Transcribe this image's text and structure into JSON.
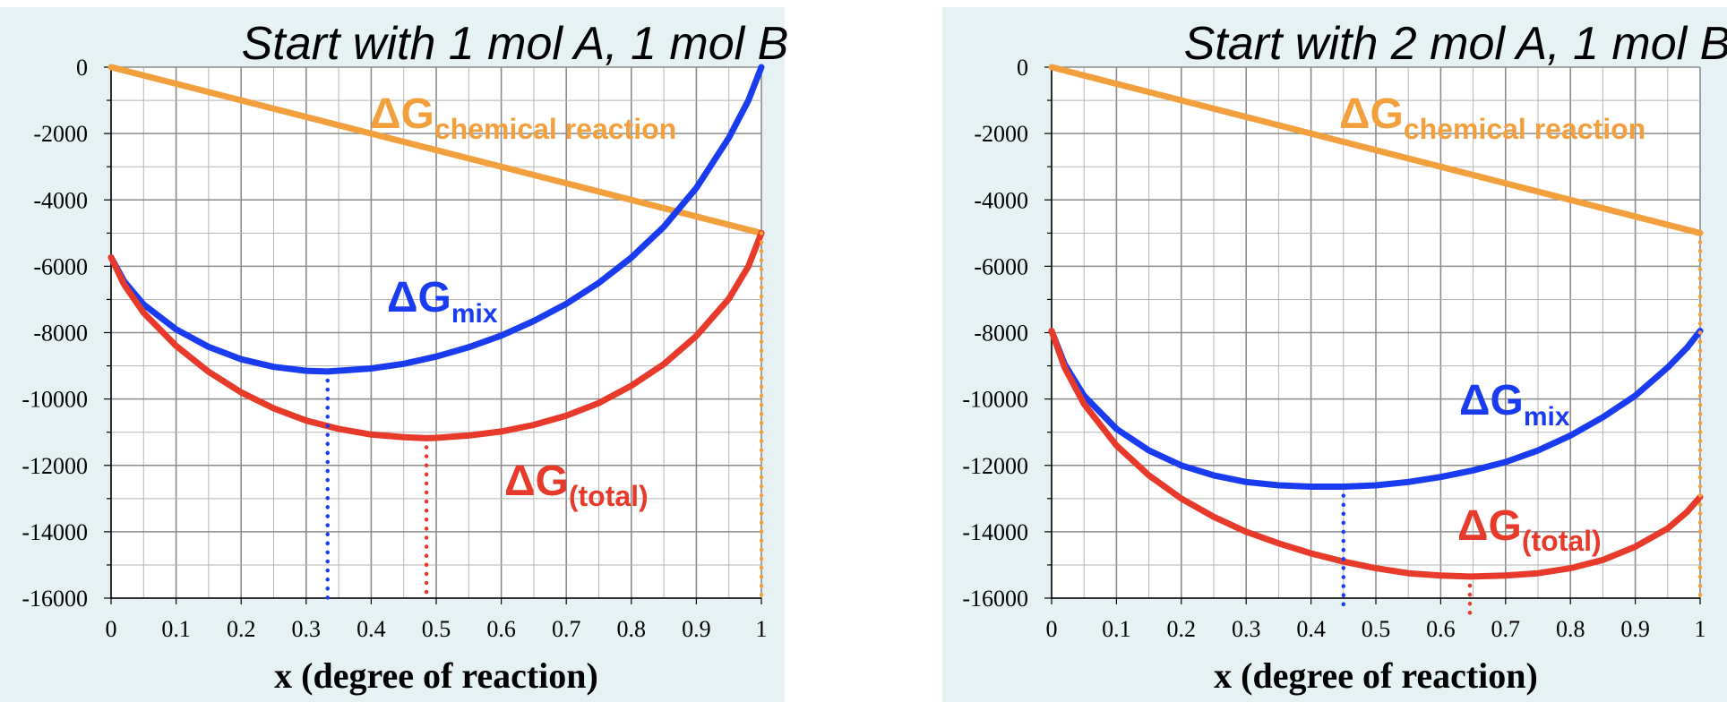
{
  "chart_data": [
    {
      "type": "line",
      "title": "Start with 1 mol A, 1 mol B",
      "xlabel": "x (degree of reaction)",
      "ylabel": "",
      "xlim": [
        0,
        1
      ],
      "ylim": [
        -16000,
        0
      ],
      "x_ticks": [
        "0",
        "0.1",
        "0.2",
        "0.3",
        "0.4",
        "0.5",
        "0.6",
        "0.7",
        "0.8",
        "0.9",
        "1"
      ],
      "y_ticks": [
        "0",
        "-2000",
        "-4000",
        "-6000",
        "-8000",
        "-10000",
        "-12000",
        "-14000",
        "-16000"
      ],
      "grid": true,
      "series": [
        {
          "name": "chemical reaction",
          "label_main": "ΔG",
          "label_sub": "chemical reaction",
          "color": "#f2a03d",
          "x": [
            0,
            1
          ],
          "values": [
            0,
            -5000
          ]
        },
        {
          "name": "mix",
          "label_main": "ΔG",
          "label_sub": "mix",
          "color": "#1a3cf0",
          "x": [
            0,
            0.02,
            0.05,
            0.1,
            0.15,
            0.2,
            0.25,
            0.3,
            0.333,
            0.4,
            0.45,
            0.5,
            0.55,
            0.6,
            0.65,
            0.7,
            0.75,
            0.8,
            0.85,
            0.9,
            0.95,
            0.98,
            1
          ],
          "values": [
            -5730,
            -6450,
            -7150,
            -7900,
            -8430,
            -8800,
            -9030,
            -9150,
            -9170,
            -9080,
            -8940,
            -8720,
            -8440,
            -8090,
            -7650,
            -7130,
            -6500,
            -5740,
            -4810,
            -3640,
            -2130,
            -1000,
            0
          ]
        },
        {
          "name": "total",
          "label_main": "ΔG",
          "label_sub": "(total)",
          "color": "#e83a2a",
          "x": [
            0,
            0.02,
            0.05,
            0.1,
            0.15,
            0.2,
            0.25,
            0.3,
            0.35,
            0.4,
            0.45,
            0.485,
            0.5,
            0.55,
            0.6,
            0.65,
            0.7,
            0.75,
            0.8,
            0.85,
            0.9,
            0.95,
            0.98,
            1
          ],
          "values": [
            -5730,
            -6550,
            -7400,
            -8400,
            -9180,
            -9800,
            -10280,
            -10650,
            -10900,
            -11070,
            -11150,
            -11180,
            -11170,
            -11100,
            -10980,
            -10780,
            -10500,
            -10120,
            -9600,
            -8950,
            -8100,
            -6980,
            -6000,
            -5000
          ]
        }
      ],
      "markers": [
        {
          "x": 0.333,
          "from": -9170,
          "to": -16000,
          "color": "#1a3cf0"
        },
        {
          "x": 0.485,
          "from": -11180,
          "to": -16000,
          "color": "#e83a2a"
        },
        {
          "x": 1,
          "from": -5000,
          "to": -16000,
          "color": "#f2a03d"
        }
      ]
    },
    {
      "type": "line",
      "title": "Start with 2 mol A, 1 mol B",
      "xlabel": "x (degree of reaction)",
      "ylabel": "",
      "xlim": [
        0,
        1
      ],
      "ylim": [
        -16000,
        0
      ],
      "x_ticks": [
        "0",
        "0.1",
        "0.2",
        "0.3",
        "0.4",
        "0.5",
        "0.6",
        "0.7",
        "0.8",
        "0.9",
        "1"
      ],
      "y_ticks": [
        "0",
        "-2000",
        "-4000",
        "-6000",
        "-8000",
        "-10000",
        "-12000",
        "-14000",
        "-16000"
      ],
      "grid": true,
      "series": [
        {
          "name": "chemical reaction",
          "label_main": "ΔG",
          "label_sub": "chemical reaction",
          "color": "#f2a03d",
          "x": [
            0,
            1
          ],
          "values": [
            0,
            -5000
          ]
        },
        {
          "name": "mix",
          "label_main": "ΔG",
          "label_sub": "mix",
          "color": "#1a3cf0",
          "x": [
            0,
            0.02,
            0.05,
            0.1,
            0.15,
            0.2,
            0.25,
            0.3,
            0.35,
            0.4,
            0.45,
            0.5,
            0.55,
            0.6,
            0.65,
            0.7,
            0.75,
            0.8,
            0.85,
            0.9,
            0.95,
            0.98,
            1
          ],
          "values": [
            -7950,
            -8950,
            -9900,
            -10900,
            -11550,
            -12000,
            -12300,
            -12500,
            -12600,
            -12640,
            -12640,
            -12600,
            -12500,
            -12350,
            -12150,
            -11900,
            -11550,
            -11100,
            -10550,
            -9900,
            -9050,
            -8450,
            -7950
          ]
        },
        {
          "name": "total",
          "label_main": "ΔG",
          "label_sub": "(total)",
          "color": "#e83a2a",
          "x": [
            0,
            0.02,
            0.05,
            0.1,
            0.15,
            0.2,
            0.25,
            0.3,
            0.35,
            0.4,
            0.45,
            0.5,
            0.55,
            0.6,
            0.645,
            0.7,
            0.75,
            0.8,
            0.85,
            0.9,
            0.95,
            0.98,
            1
          ],
          "values": [
            -7950,
            -9050,
            -10150,
            -11400,
            -12300,
            -13000,
            -13550,
            -14000,
            -14350,
            -14650,
            -14900,
            -15100,
            -15250,
            -15320,
            -15350,
            -15320,
            -15250,
            -15100,
            -14850,
            -14450,
            -13900,
            -13400,
            -12950
          ]
        }
      ],
      "markers": [
        {
          "x": 0.45,
          "from": -12640,
          "to": -16200,
          "color": "#1a3cf0"
        },
        {
          "x": 0.645,
          "from": -15350,
          "to": -16500,
          "color": "#e83a2a"
        },
        {
          "x": 1,
          "from": -5000,
          "to": -16000,
          "color": "#f2a03d"
        }
      ]
    }
  ]
}
